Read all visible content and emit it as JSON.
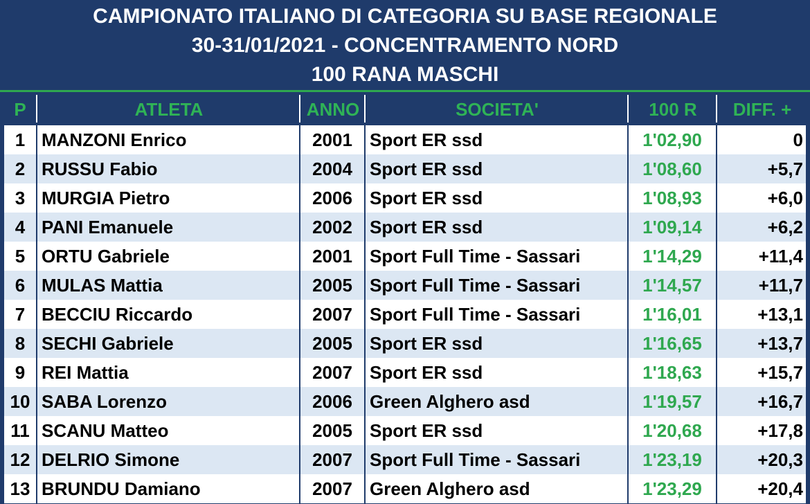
{
  "title": {
    "line1": "CAMPIONATO ITALIANO DI CATEGORIA SU BASE REGIONALE",
    "line2": "30-31/01/2021 - CONCENTRAMENTO NORD",
    "line3": "100 RANA MASCHI"
  },
  "columns": {
    "pos": "P",
    "athlete": "ATLETA",
    "year": "ANNO",
    "club": "SOCIETA'",
    "time": "100 R",
    "diff": "DIFF. +"
  },
  "rows": [
    {
      "pos": "1",
      "athlete": "MANZONI Enrico",
      "year": "2001",
      "club": "Sport ER ssd",
      "time": "1'02,90",
      "diff": "0"
    },
    {
      "pos": "2",
      "athlete": "RUSSU Fabio",
      "year": "2004",
      "club": "Sport ER ssd",
      "time": "1'08,60",
      "diff": "+5,7"
    },
    {
      "pos": "3",
      "athlete": "MURGIA Pietro",
      "year": "2006",
      "club": "Sport ER ssd",
      "time": "1'08,93",
      "diff": "+6,0"
    },
    {
      "pos": "4",
      "athlete": "PANI Emanuele",
      "year": "2002",
      "club": "Sport ER ssd",
      "time": "1'09,14",
      "diff": "+6,2"
    },
    {
      "pos": "5",
      "athlete": "ORTU Gabriele",
      "year": "2001",
      "club": "Sport Full Time - Sassari",
      "time": "1'14,29",
      "diff": "+11,4"
    },
    {
      "pos": "6",
      "athlete": "MULAS Mattia",
      "year": "2005",
      "club": "Sport Full Time - Sassari",
      "time": "1'14,57",
      "diff": "+11,7"
    },
    {
      "pos": "7",
      "athlete": "BECCIU Riccardo",
      "year": "2007",
      "club": "Sport Full Time - Sassari",
      "time": "1'16,01",
      "diff": "+13,1"
    },
    {
      "pos": "8",
      "athlete": "SECHI Gabriele",
      "year": "2005",
      "club": "Sport ER ssd",
      "time": "1'16,65",
      "diff": "+13,7"
    },
    {
      "pos": "9",
      "athlete": "REI Mattia",
      "year": "2007",
      "club": "Sport ER ssd",
      "time": "1'18,63",
      "diff": "+15,7"
    },
    {
      "pos": "10",
      "athlete": "SABA Lorenzo",
      "year": "2006",
      "club": "Green Alghero asd",
      "time": "1'19,57",
      "diff": "+16,7"
    },
    {
      "pos": "11",
      "athlete": "SCANU Matteo",
      "year": "2005",
      "club": "Sport ER ssd",
      "time": "1'20,68",
      "diff": "+17,8"
    },
    {
      "pos": "12",
      "athlete": "DELRIO Simone",
      "year": "2007",
      "club": "Sport Full Time - Sassari",
      "time": "1'23,19",
      "diff": "+20,3"
    },
    {
      "pos": "13",
      "athlete": "BRUNDU Damiano",
      "year": "2007",
      "club": "Green Alghero asd",
      "time": "1'23,29",
      "diff": "+20,4"
    }
  ],
  "colors": {
    "header_bg": "#1f3b6b",
    "header_text": "#2fb356",
    "row_alt": "#dce7f3",
    "time_text": "#2fa84f"
  }
}
